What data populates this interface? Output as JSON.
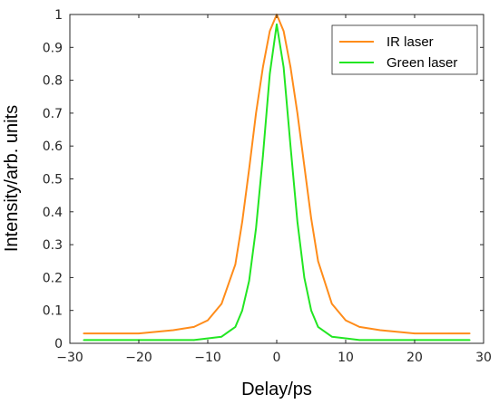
{
  "chart_data": {
    "type": "line",
    "title": "",
    "xlabel": "Delay/ps",
    "ylabel": "Intensity/arb. units",
    "xlim": [
      -30,
      30
    ],
    "ylim": [
      0,
      1
    ],
    "xticks": [
      -30,
      -20,
      -10,
      0,
      10,
      20,
      30
    ],
    "yticks": [
      0,
      0.1,
      0.2,
      0.3,
      0.4,
      0.5,
      0.6,
      0.7,
      0.8,
      0.9,
      1
    ],
    "grid": false,
    "legend_position": "top-right",
    "series": [
      {
        "name": "IR laser",
        "color": "#ff8c1a",
        "x": [
          -28,
          -25,
          -20,
          -15,
          -12,
          -10,
          -8,
          -6,
          -5,
          -4,
          -3,
          -2,
          -1,
          0,
          1,
          2,
          3,
          4,
          5,
          6,
          8,
          10,
          12,
          15,
          20,
          25,
          28
        ],
        "y": [
          0.03,
          0.03,
          0.03,
          0.04,
          0.05,
          0.07,
          0.12,
          0.24,
          0.37,
          0.53,
          0.7,
          0.84,
          0.95,
          1.0,
          0.95,
          0.84,
          0.7,
          0.54,
          0.38,
          0.25,
          0.12,
          0.07,
          0.05,
          0.04,
          0.03,
          0.03,
          0.03
        ]
      },
      {
        "name": "Green laser",
        "color": "#22e622",
        "x": [
          -28,
          -20,
          -12,
          -8,
          -6,
          -5,
          -4,
          -3,
          -2,
          -1,
          0,
          1,
          2,
          3,
          4,
          5,
          6,
          8,
          12,
          20,
          28
        ],
        "y": [
          0.01,
          0.01,
          0.01,
          0.02,
          0.05,
          0.1,
          0.19,
          0.35,
          0.57,
          0.82,
          0.97,
          0.84,
          0.6,
          0.37,
          0.2,
          0.1,
          0.05,
          0.02,
          0.01,
          0.01,
          0.01
        ]
      }
    ]
  }
}
